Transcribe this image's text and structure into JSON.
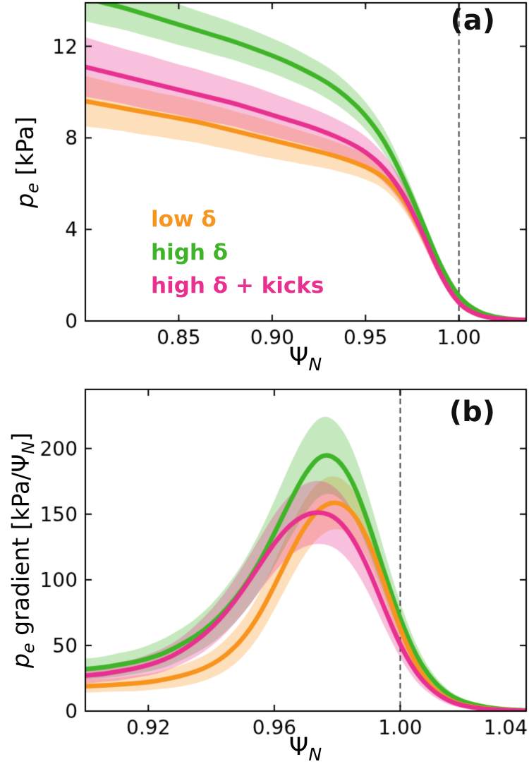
{
  "figure": {
    "background": "#ffffff",
    "frame_color": "#000000"
  },
  "chart_data": [
    {
      "id": "a",
      "type": "line",
      "panel_label": "(a)",
      "xlabel": "Ψ_N",
      "ylabel": "p_e [kPa]",
      "xlabel_segments": [
        {
          "t": "Ψ"
        },
        {
          "t": "N",
          "sub": true,
          "i": true
        }
      ],
      "ylabel_segments": [
        {
          "t": "p",
          "i": true
        },
        {
          "t": "e",
          "sub": true,
          "i": true
        },
        {
          "t": " [kPa]"
        }
      ],
      "xlim": [
        0.8,
        1.036
      ],
      "ylim": [
        0,
        13.9
      ],
      "xticks": [
        {
          "v": 0.85,
          "label": "0.85"
        },
        {
          "v": 0.9,
          "label": "0.90"
        },
        {
          "v": 0.95,
          "label": "0.95"
        },
        {
          "v": 1.0,
          "label": "1.00"
        }
      ],
      "yticks": [
        {
          "v": 0,
          "label": "0"
        },
        {
          "v": 4,
          "label": "4"
        },
        {
          "v": 8,
          "label": "8"
        },
        {
          "v": 12,
          "label": "12"
        }
      ],
      "vline": {
        "x": 1.0,
        "style": "dashed",
        "color": "#333333"
      },
      "grid": false,
      "band_alpha": 0.3,
      "draw_order": [
        1,
        0,
        2
      ],
      "legend": [
        {
          "label": "low δ",
          "color": "#f7941d"
        },
        {
          "label": "high δ",
          "color": "#3fb428"
        },
        {
          "label": "high δ + kicks",
          "color": "#e8308f"
        }
      ],
      "series": [
        {
          "name": "low δ",
          "color": "#f7941d",
          "x": [
            0.8,
            0.81,
            0.82,
            0.83,
            0.84,
            0.85,
            0.86,
            0.87,
            0.88,
            0.89,
            0.9,
            0.91,
            0.92,
            0.93,
            0.94,
            0.95,
            0.96,
            0.97,
            0.98,
            0.99,
            1.0,
            1.01,
            1.02,
            1.03,
            1.04
          ],
          "y": [
            9.6,
            9.45,
            9.3,
            9.15,
            9.0,
            8.85,
            8.7,
            8.5,
            8.3,
            8.1,
            7.9,
            7.7,
            7.5,
            7.3,
            7.05,
            6.75,
            6.3,
            5.4,
            3.9,
            2.0,
            0.7,
            0.25,
            0.1,
            0.05,
            0.02
          ],
          "band": [
            1.1,
            1.05,
            1.0,
            1.0,
            0.95,
            0.95,
            0.9,
            0.9,
            0.85,
            0.85,
            0.8,
            0.75,
            0.7,
            0.65,
            0.6,
            0.55,
            0.5,
            0.45,
            0.35,
            0.2,
            0.1,
            0.05,
            0.03,
            0.02,
            0.01
          ]
        },
        {
          "name": "high δ",
          "color": "#3fb428",
          "x": [
            0.8,
            0.81,
            0.82,
            0.83,
            0.84,
            0.85,
            0.86,
            0.87,
            0.88,
            0.89,
            0.9,
            0.91,
            0.92,
            0.93,
            0.94,
            0.95,
            0.96,
            0.97,
            0.98,
            0.99,
            1.0,
            1.01,
            1.02,
            1.03,
            1.04
          ],
          "y": [
            14.1,
            13.9,
            13.7,
            13.45,
            13.2,
            12.95,
            12.7,
            12.45,
            12.2,
            11.9,
            11.6,
            11.25,
            10.85,
            10.4,
            9.8,
            9.0,
            7.9,
            6.3,
            4.4,
            2.4,
            1.0,
            0.4,
            0.15,
            0.06,
            0.03
          ],
          "band": [
            1.0,
            1.0,
            0.95,
            0.95,
            0.9,
            0.9,
            0.85,
            0.85,
            0.8,
            0.8,
            0.75,
            0.75,
            0.7,
            0.7,
            0.65,
            0.6,
            0.55,
            0.45,
            0.35,
            0.22,
            0.12,
            0.07,
            0.04,
            0.02,
            0.01
          ]
        },
        {
          "name": "high δ + kicks",
          "color": "#e8308f",
          "x": [
            0.8,
            0.81,
            0.82,
            0.83,
            0.84,
            0.85,
            0.86,
            0.87,
            0.88,
            0.89,
            0.9,
            0.91,
            0.92,
            0.93,
            0.94,
            0.95,
            0.96,
            0.97,
            0.98,
            0.99,
            1.0,
            1.01,
            1.02,
            1.03,
            1.04
          ],
          "y": [
            11.1,
            10.9,
            10.7,
            10.5,
            10.3,
            10.1,
            9.9,
            9.7,
            9.5,
            9.25,
            9.0,
            8.75,
            8.5,
            8.2,
            7.85,
            7.4,
            6.7,
            5.6,
            3.95,
            2.0,
            0.7,
            0.25,
            0.1,
            0.05,
            0.02
          ],
          "band": [
            1.3,
            1.25,
            1.2,
            1.2,
            1.15,
            1.1,
            1.1,
            1.05,
            1.0,
            1.0,
            0.95,
            0.9,
            0.85,
            0.8,
            0.75,
            0.7,
            0.6,
            0.5,
            0.4,
            0.25,
            0.12,
            0.06,
            0.03,
            0.02,
            0.01
          ]
        }
      ]
    },
    {
      "id": "b",
      "type": "line",
      "panel_label": "(b)",
      "xlabel": "Ψ_N",
      "ylabel": "p_e gradient [kPa/Ψ_N]",
      "xlabel_segments": [
        {
          "t": "Ψ"
        },
        {
          "t": "N",
          "sub": true,
          "i": true
        }
      ],
      "ylabel_segments": [
        {
          "t": "p",
          "i": true
        },
        {
          "t": "e",
          "sub": true,
          "i": true
        },
        {
          "t": " gradient [kPa/"
        },
        {
          "t": "Ψ"
        },
        {
          "t": "N",
          "sub": true,
          "i": true
        },
        {
          "t": "]"
        }
      ],
      "xlim": [
        0.9,
        1.04
      ],
      "ylim": [
        0,
        245
      ],
      "xticks": [
        {
          "v": 0.92,
          "label": "0.92"
        },
        {
          "v": 0.96,
          "label": "0.96"
        },
        {
          "v": 1.0,
          "label": "1.00"
        },
        {
          "v": 1.04,
          "label": "1.04"
        }
      ],
      "yticks": [
        {
          "v": 0,
          "label": "0"
        },
        {
          "v": 50,
          "label": "50"
        },
        {
          "v": 100,
          "label": "100"
        },
        {
          "v": 150,
          "label": "150"
        },
        {
          "v": 200,
          "label": "200"
        }
      ],
      "vline": {
        "x": 1.0,
        "style": "dashed",
        "color": "#333333"
      },
      "grid": false,
      "band_alpha": 0.3,
      "draw_order": [
        1,
        0,
        2
      ],
      "legend": [],
      "series": [
        {
          "name": "low δ",
          "color": "#f7941d",
          "x": [
            0.9,
            0.905,
            0.91,
            0.915,
            0.92,
            0.925,
            0.93,
            0.935,
            0.94,
            0.945,
            0.95,
            0.955,
            0.96,
            0.965,
            0.97,
            0.975,
            0.98,
            0.985,
            0.99,
            0.995,
            1.0,
            1.005,
            1.01,
            1.015,
            1.02,
            1.025,
            1.03,
            1.035,
            1.04
          ],
          "y": [
            19,
            19.5,
            20,
            21,
            22,
            24,
            26.5,
            30,
            35,
            43,
            55,
            72,
            95,
            120,
            142,
            156,
            160,
            152,
            130,
            97,
            62,
            35,
            18,
            9,
            4.5,
            2.5,
            1.2,
            0.6,
            0.3
          ],
          "band": [
            5,
            5,
            5,
            6,
            6,
            7,
            8,
            9,
            10,
            12,
            14,
            16,
            18,
            20,
            21,
            21,
            20,
            18,
            15,
            12,
            9,
            6,
            4,
            2.5,
            1.5,
            1,
            0.6,
            0.4,
            0.2
          ]
        },
        {
          "name": "high δ",
          "color": "#3fb428",
          "x": [
            0.9,
            0.905,
            0.91,
            0.915,
            0.92,
            0.925,
            0.93,
            0.935,
            0.94,
            0.945,
            0.95,
            0.955,
            0.96,
            0.965,
            0.97,
            0.975,
            0.98,
            0.985,
            0.99,
            0.995,
            1.0,
            1.005,
            1.01,
            1.015,
            1.02,
            1.025,
            1.03,
            1.035,
            1.04
          ],
          "y": [
            32,
            33,
            35,
            37,
            40,
            44,
            50,
            57,
            66,
            78,
            93,
            112,
            135,
            160,
            182,
            196,
            193,
            175,
            143,
            105,
            70,
            42,
            24,
            13,
            7,
            4,
            2,
            1,
            0.5
          ],
          "band": [
            8,
            8,
            9,
            9,
            10,
            11,
            12,
            13,
            15,
            17,
            19,
            22,
            25,
            28,
            30,
            30,
            28,
            25,
            21,
            16,
            12,
            8,
            5,
            3,
            2,
            1.5,
            1,
            0.6,
            0.3
          ]
        },
        {
          "name": "high δ + kicks",
          "color": "#e8308f",
          "x": [
            0.9,
            0.905,
            0.91,
            0.915,
            0.92,
            0.925,
            0.93,
            0.935,
            0.94,
            0.945,
            0.95,
            0.955,
            0.96,
            0.965,
            0.97,
            0.975,
            0.98,
            0.985,
            0.99,
            0.995,
            1.0,
            1.005,
            1.01,
            1.015,
            1.02,
            1.025,
            1.03,
            1.035,
            1.04
          ],
          "y": [
            27,
            28,
            30,
            32,
            35,
            39,
            45,
            53,
            63,
            76,
            92,
            110,
            128,
            142,
            150,
            152,
            147,
            132,
            108,
            78,
            50,
            29,
            16,
            8,
            4,
            2,
            1,
            0.5,
            0.2
          ],
          "band": [
            6,
            6,
            7,
            7,
            8,
            9,
            10,
            12,
            14,
            16,
            18,
            20,
            22,
            23,
            24,
            24,
            23,
            21,
            18,
            14,
            10,
            7,
            4.5,
            3,
            2,
            1.3,
            0.8,
            0.4,
            0.2
          ]
        }
      ]
    }
  ]
}
